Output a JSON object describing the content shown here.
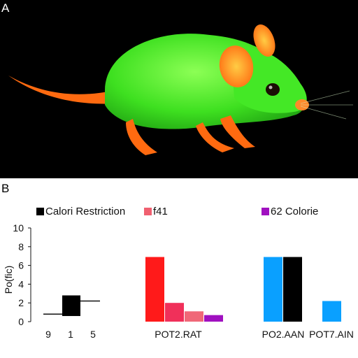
{
  "panels": {
    "a_label": "A",
    "b_label": "B"
  },
  "illustration": {
    "subject": "rat",
    "colors": {
      "background": "#000000",
      "body": "#39e01e",
      "body_highlight": "#7dff4a",
      "extremities": "#ff7a1a",
      "ear_inner": "#ffb23a",
      "eye": "#1a0e05"
    }
  },
  "legend": [
    {
      "label": "Calori Restriction",
      "color": "#000000"
    },
    {
      "label": "f41",
      "color": "#f06070"
    },
    {
      "label": "62 Colorie",
      "color": "#a010c0"
    }
  ],
  "chart_data": {
    "type": "bar",
    "title": "",
    "xlabel": "",
    "ylabel": "Po(fic)",
    "ylim": [
      0,
      10
    ],
    "yticks": [
      0,
      2,
      4,
      6,
      8,
      10
    ],
    "groups": [
      {
        "label": "",
        "tick_labels": [
          "9",
          "1",
          "5"
        ],
        "bars": [
          {
            "bottom": 0.6,
            "top": 2.8,
            "color": "#000000"
          }
        ],
        "reference_line": 0.8,
        "reference_line_right": 2.2
      },
      {
        "label": "POT2.RAT",
        "bars": [
          {
            "value": 6.9,
            "color": "#ff1a1a"
          },
          {
            "value": 2.0,
            "color": "#f0305a"
          },
          {
            "value": 1.1,
            "color": "#f06878"
          },
          {
            "value": 0.7,
            "color": "#a010c0"
          }
        ]
      },
      {
        "label": "PO2.AAN",
        "bars": [
          {
            "value": 6.9,
            "color": "#0aa0ff"
          },
          {
            "value": 6.9,
            "color": "#000000"
          }
        ]
      },
      {
        "label": "POT7.AIN",
        "bars": [
          {
            "value": 2.2,
            "color": "#0aa0ff"
          }
        ]
      }
    ]
  }
}
